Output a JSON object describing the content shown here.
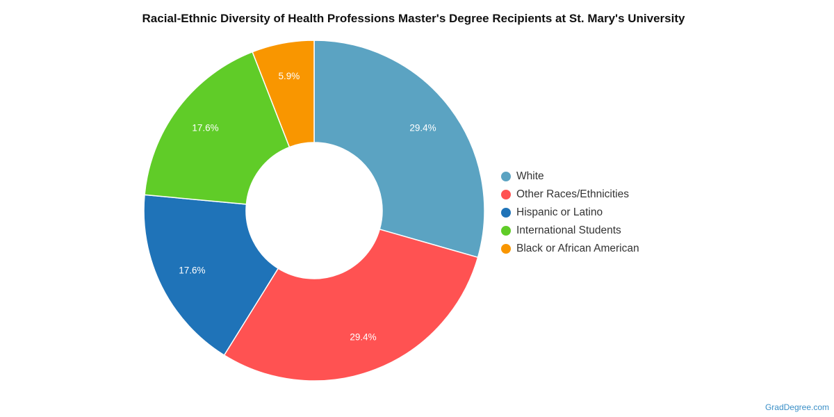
{
  "chart_data": {
    "type": "pie",
    "donut": true,
    "title": "Racial-Ethnic Diversity of Health Professions Master's Degree Recipients at St. Mary's University",
    "slices": [
      {
        "name": "White",
        "value": 29.4,
        "label": "29.4%",
        "color": "#5ba3c2"
      },
      {
        "name": "Other Races/Ethnicities",
        "value": 29.4,
        "label": "29.4%",
        "color": "#ff5252"
      },
      {
        "name": "Hispanic or Latino",
        "value": 17.6,
        "label": "17.6%",
        "color": "#1f73b8"
      },
      {
        "name": "International Students",
        "value": 17.6,
        "label": "17.6%",
        "color": "#60cc28"
      },
      {
        "name": "Black or African American",
        "value": 5.9,
        "label": "5.9%",
        "color": "#f99600"
      }
    ],
    "legend_position": "right"
  },
  "credit": "GradDegree.com"
}
